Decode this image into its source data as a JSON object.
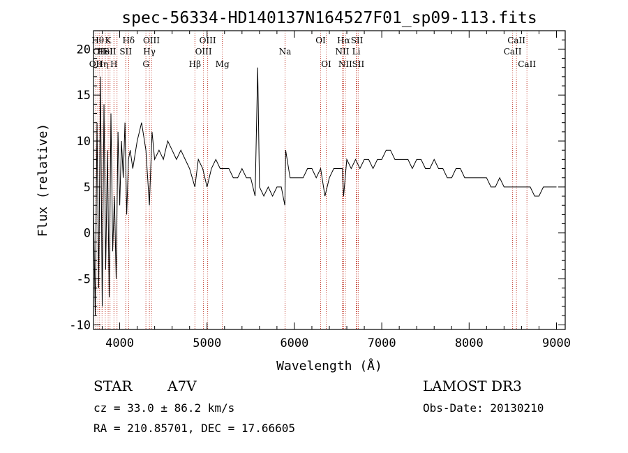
{
  "chart_data": {
    "type": "line",
    "title": "spec-56334-HD140137N164527F01_sp09-113.fits",
    "xlabel": "Wavelength (Å)",
    "ylabel": "Flux (relative)",
    "xlim": [
      3700,
      9100
    ],
    "ylim": [
      -10.5,
      22
    ],
    "x_ticks": [
      4000,
      5000,
      6000,
      7000,
      8000,
      9000
    ],
    "y_ticks": [
      -10,
      -5,
      0,
      5,
      10,
      15,
      20
    ],
    "grid": false,
    "series": [
      {
        "x": [
          3700,
          3720,
          3740,
          3760,
          3780,
          3800,
          3820,
          3840,
          3860,
          3880,
          3900,
          3920,
          3940,
          3960,
          3980,
          4000,
          4020,
          4040,
          4060,
          4080,
          4100,
          4120,
          4150,
          4200,
          4250,
          4300,
          4340,
          4370,
          4400,
          4450,
          4500,
          4550,
          4600,
          4650,
          4700,
          4750,
          4800,
          4861,
          4900,
          4950,
          5000,
          5050,
          5100,
          5150,
          5200,
          5250,
          5300,
          5350,
          5400,
          5450,
          5500,
          5550,
          5580,
          5600,
          5650,
          5700,
          5750,
          5800,
          5850,
          5890,
          5900,
          5950,
          6000,
          6050,
          6100,
          6150,
          6200,
          6250,
          6300,
          6350,
          6400,
          6450,
          6500,
          6550,
          6563,
          6600,
          6650,
          6700,
          6750,
          6800,
          6850,
          6900,
          6950,
          7000,
          7050,
          7100,
          7150,
          7200,
          7250,
          7300,
          7350,
          7400,
          7450,
          7500,
          7550,
          7600,
          7650,
          7700,
          7750,
          7800,
          7850,
          7900,
          7950,
          8000,
          8050,
          8100,
          8150,
          8200,
          8250,
          8300,
          8350,
          8400,
          8450,
          8500,
          8550,
          8600,
          8650,
          8700,
          8750,
          8800,
          8850,
          8900,
          8950,
          9000
        ],
        "y": [
          3,
          -9,
          12,
          -6,
          17,
          -8,
          14,
          -4,
          9,
          -7,
          13,
          -2,
          4,
          -5,
          11,
          3,
          10,
          6,
          12,
          2,
          8,
          9,
          7,
          10,
          12,
          9,
          3,
          11,
          8,
          9,
          8,
          10,
          9,
          8,
          9,
          8,
          7,
          5,
          8,
          7,
          5,
          7,
          8,
          7,
          7,
          7,
          6,
          6,
          7,
          6,
          6,
          4,
          18,
          5,
          4,
          5,
          4,
          5,
          5,
          3,
          9,
          6,
          6,
          6,
          6,
          7,
          7,
          6,
          7,
          4,
          6,
          7,
          7,
          7,
          4,
          8,
          7,
          8,
          7,
          8,
          8,
          7,
          8,
          8,
          9,
          9,
          8,
          8,
          8,
          8,
          7,
          8,
          8,
          7,
          7,
          8,
          7,
          7,
          6,
          6,
          7,
          7,
          6,
          6,
          6,
          6,
          6,
          6,
          5,
          5,
          6,
          5,
          5,
          5,
          5,
          5,
          5,
          5,
          4,
          4,
          5,
          5,
          5,
          5
        ]
      }
    ],
    "lines": [
      {
        "wavelength": 3727,
        "label": "OII",
        "row": 3
      },
      {
        "wavelength": 3750,
        "label": "Hθ",
        "row": 1
      },
      {
        "wavelength": 3770,
        "label": "OII",
        "row": 2
      },
      {
        "wavelength": 3798,
        "label": "Hη",
        "row": 3
      },
      {
        "wavelength": 3835,
        "label": "HeI",
        "row": 2
      },
      {
        "wavelength": 3868,
        "label": "K",
        "row": 1
      },
      {
        "wavelength": 3889,
        "label": "SII",
        "row": 2
      },
      {
        "wavelength": 3934,
        "label": "H",
        "row": 3
      },
      {
        "wavelength": 3969,
        "label": "",
        "row": 0
      },
      {
        "wavelength": 4102,
        "label": "Hδ",
        "row": 1
      },
      {
        "wavelength": 4069,
        "label": "SII",
        "row": 2
      },
      {
        "wavelength": 4300,
        "label": "G",
        "row": 3
      },
      {
        "wavelength": 4340,
        "label": "Hγ",
        "row": 2
      },
      {
        "wavelength": 4363,
        "label": "OIII",
        "row": 1
      },
      {
        "wavelength": 4861,
        "label": "Hβ",
        "row": 3
      },
      {
        "wavelength": 4959,
        "label": "OIII",
        "row": 2
      },
      {
        "wavelength": 5007,
        "label": "OIII",
        "row": 1
      },
      {
        "wavelength": 5175,
        "label": "Mg",
        "row": 3
      },
      {
        "wavelength": 5893,
        "label": "Na",
        "row": 2
      },
      {
        "wavelength": 6300,
        "label": "OI",
        "row": 1
      },
      {
        "wavelength": 6364,
        "label": "OI",
        "row": 3
      },
      {
        "wavelength": 6548,
        "label": "NII",
        "row": 2
      },
      {
        "wavelength": 6563,
        "label": "Hα",
        "row": 1
      },
      {
        "wavelength": 6583,
        "label": "NII",
        "row": 3
      },
      {
        "wavelength": 6708,
        "label": "Li",
        "row": 2
      },
      {
        "wavelength": 6716,
        "label": "SII",
        "row": 1
      },
      {
        "wavelength": 6731,
        "label": "SII",
        "row": 3
      },
      {
        "wavelength": 8498,
        "label": "CaII",
        "row": 2
      },
      {
        "wavelength": 8542,
        "label": "CaII",
        "row": 1
      },
      {
        "wavelength": 8662,
        "label": "CaII",
        "row": 3
      }
    ]
  },
  "info": {
    "class": "STAR",
    "subclass": "A7V",
    "survey": "LAMOST DR3",
    "cz": "cz = 33.0 ± 86.2 km/s",
    "obs_date": "Obs-Date: 20130210",
    "coords": "RA = 210.85701, DEC =  17.66605"
  },
  "colors": {
    "line_marker": "#c0392b",
    "spectrum": "#000000",
    "axes": "#000000"
  }
}
